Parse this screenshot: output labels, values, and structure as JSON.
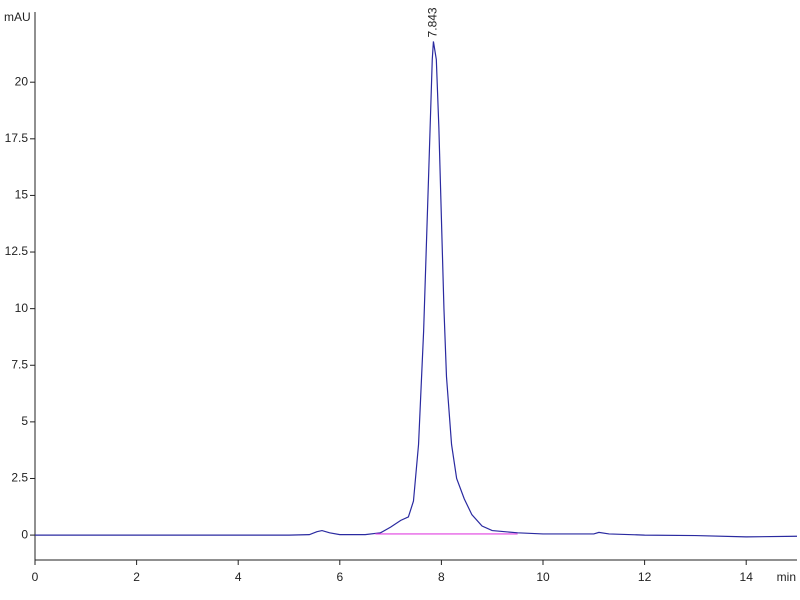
{
  "chart_data": {
    "type": "line",
    "x_label": "min",
    "y_label": "mAU",
    "xlim": [
      0,
      15
    ],
    "xticks": [
      0,
      2,
      4,
      6,
      8,
      10,
      12,
      14
    ],
    "ylim": [
      -1.1,
      23.1
    ],
    "yticks": [
      0,
      2.5,
      5,
      7.5,
      10,
      12.5,
      15,
      17.5,
      20
    ],
    "grid": false,
    "annotations": [
      {
        "text": "7.843",
        "x": 7.843
      }
    ],
    "series": [
      {
        "name": "signal",
        "color": "#2a2aa0",
        "x": [
          0,
          1,
          2,
          3,
          4,
          5,
          5.4,
          5.55,
          5.65,
          5.8,
          6,
          6.5,
          6.8,
          7.0,
          7.2,
          7.35,
          7.45,
          7.55,
          7.65,
          7.75,
          7.82,
          7.843,
          7.9,
          7.95,
          8.0,
          8.05,
          8.1,
          8.2,
          8.3,
          8.45,
          8.6,
          8.8,
          9.0,
          9.5,
          10,
          11,
          11.1,
          11.3,
          12,
          13,
          14,
          15
        ],
        "values": [
          0,
          0,
          0,
          0,
          0,
          0,
          0.02,
          0.15,
          0.2,
          0.1,
          0.02,
          0.02,
          0.1,
          0.35,
          0.65,
          0.8,
          1.5,
          4,
          9,
          16,
          21,
          21.8,
          21,
          18,
          14,
          10,
          7,
          4,
          2.5,
          1.6,
          0.9,
          0.4,
          0.2,
          0.1,
          0.05,
          0.05,
          0.12,
          0.05,
          0,
          -0.02,
          -0.08,
          -0.05
        ]
      },
      {
        "name": "baseline",
        "color": "#e040e0",
        "x": [
          6.7,
          9.5
        ],
        "values": [
          0.05,
          0.05
        ]
      }
    ]
  }
}
